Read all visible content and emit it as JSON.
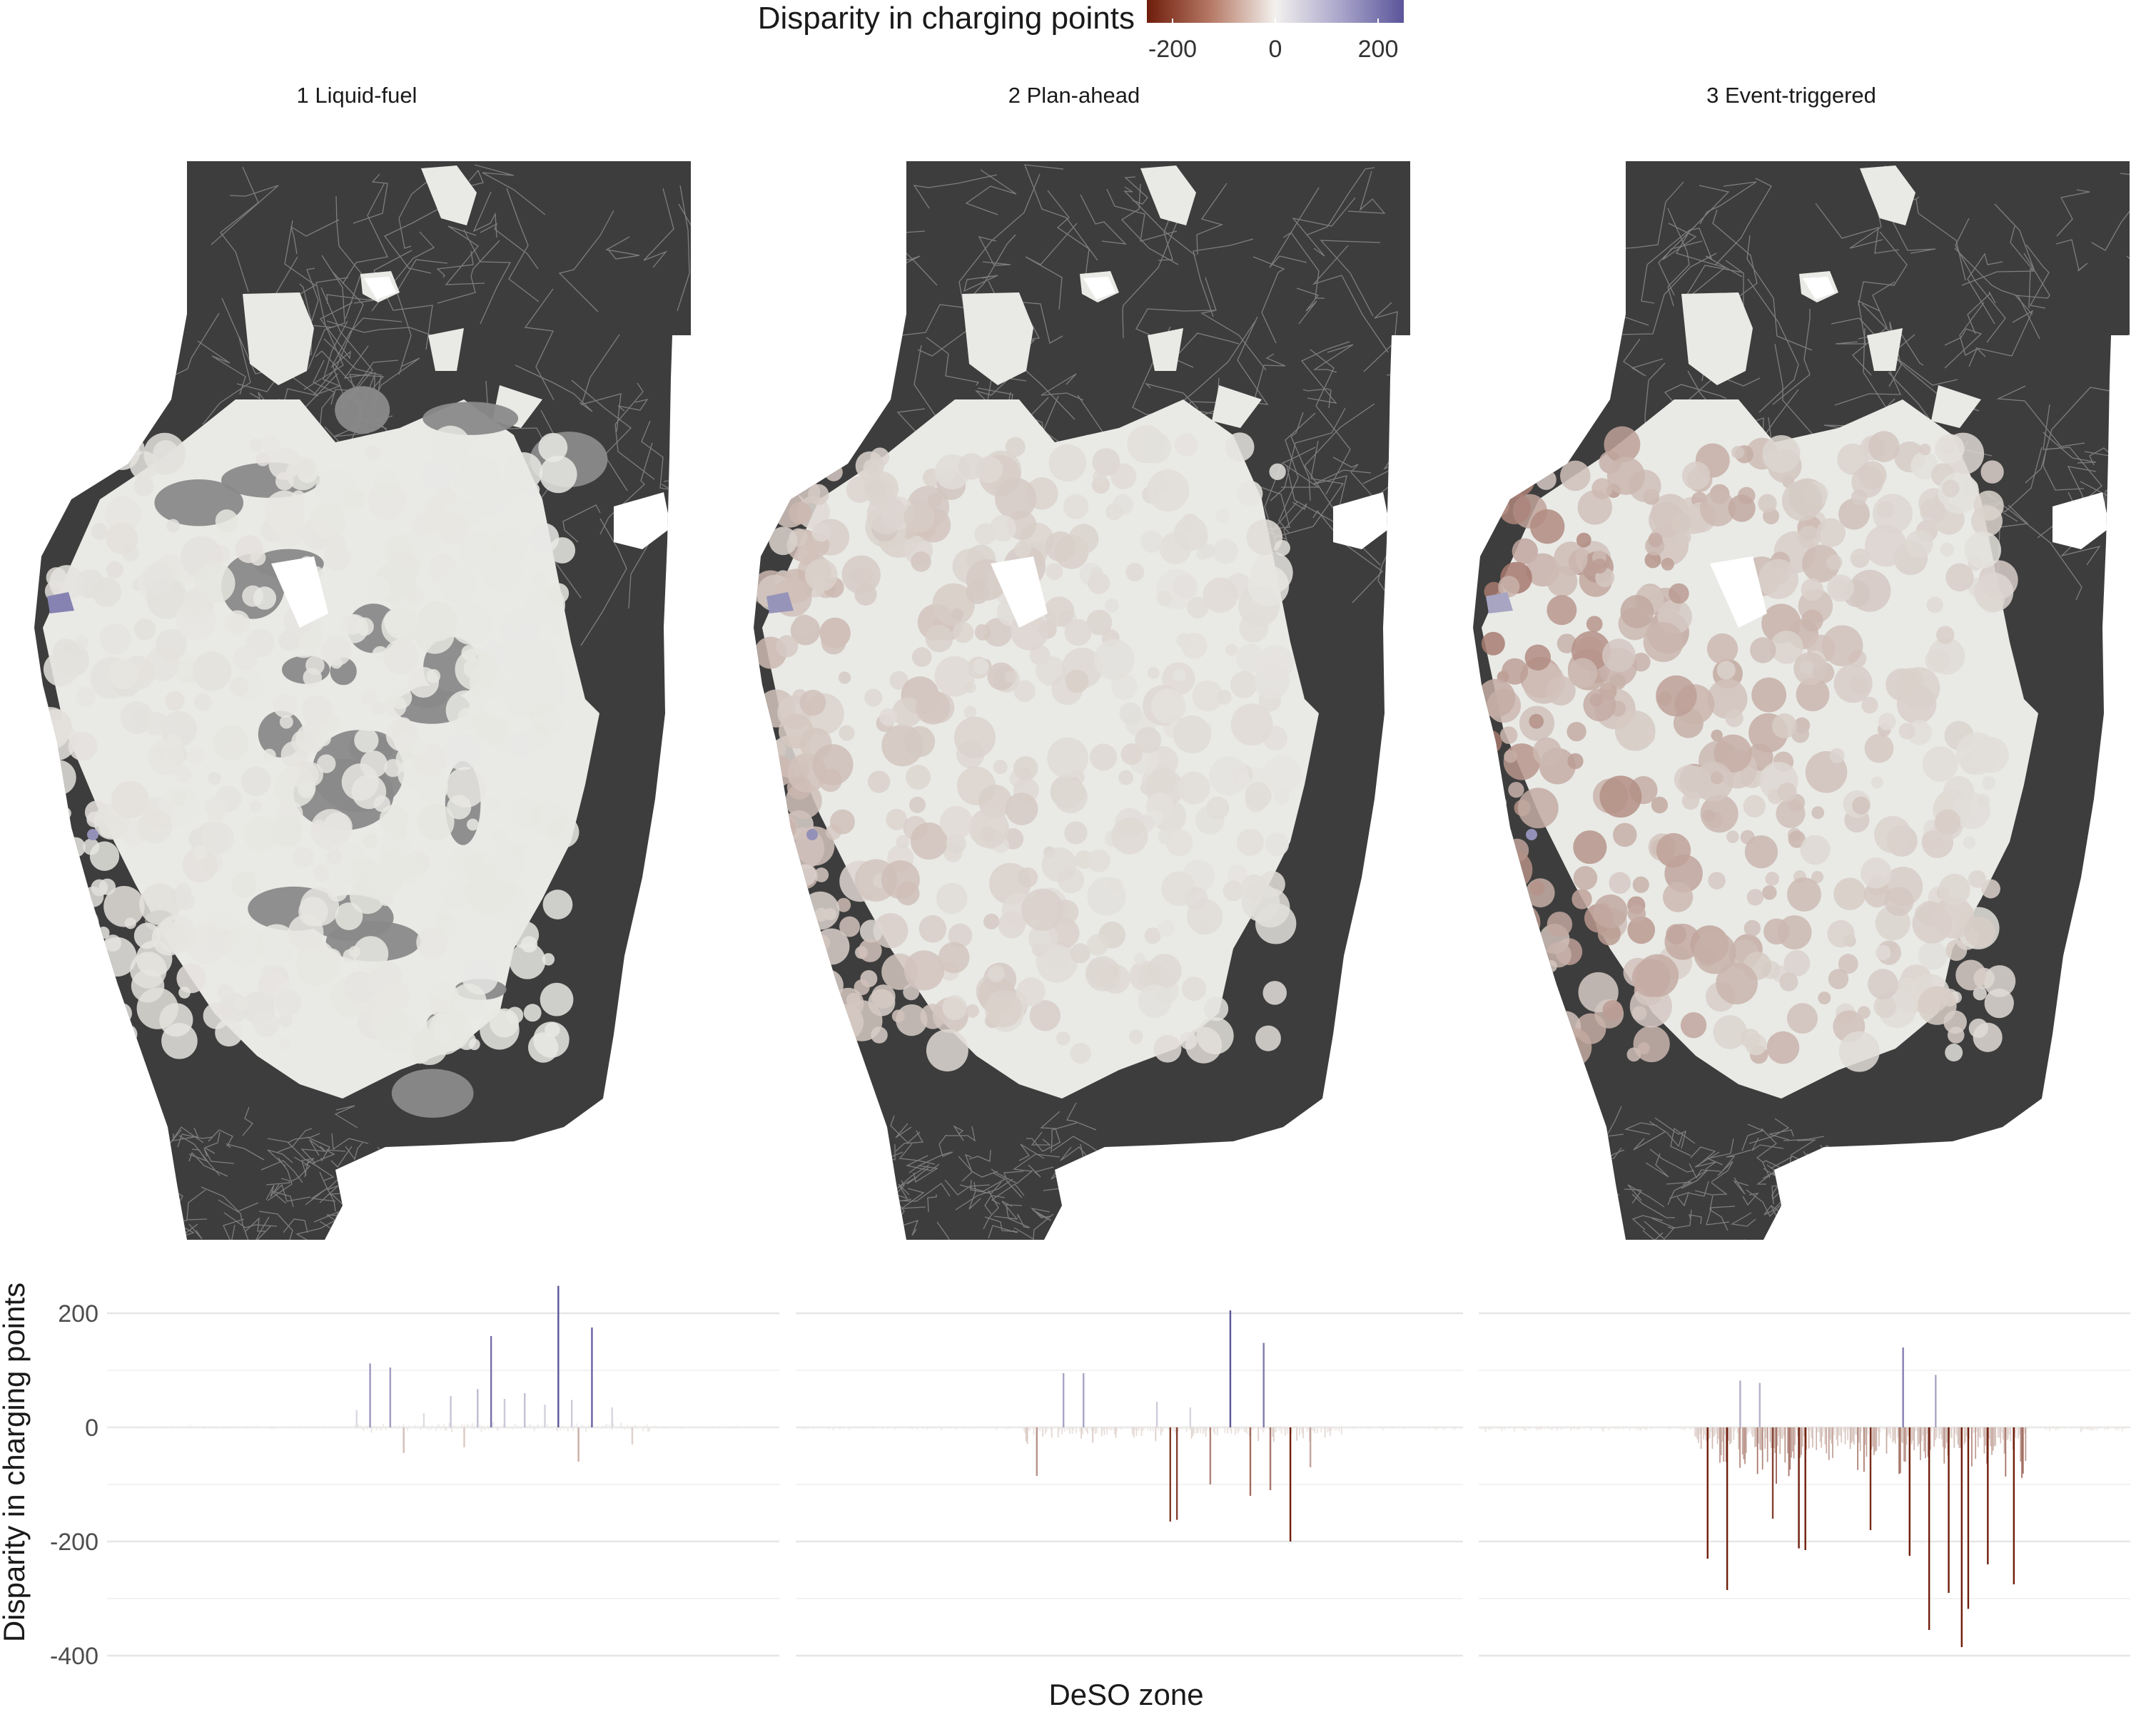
{
  "chart_data": {
    "type": "bar",
    "description_x_axis": "DeSO zone",
    "legend": {
      "title": "Disparity in charging points",
      "ticks": [
        -200,
        0,
        200
      ],
      "range": [
        -250,
        250
      ],
      "colors": {
        "negative": "#6f1d0b",
        "neutral": "#f3f1ee",
        "positive": "#5b559a"
      }
    },
    "missing_fill": "#3d3d3d",
    "map_colors": {
      "dark": "#3d3d3d",
      "gray": "#8a8a8a",
      "light": "#e9eae6",
      "border": "#ffffff"
    },
    "panels": [
      {
        "title": "1 Liquid-fuel",
        "map_tint": {
          "red": 0.05,
          "blue": 0.04
        },
        "gray_fraction": 0.36,
        "spikes": [
          {
            "pos": 0.39,
            "value": 112
          },
          {
            "pos": 0.42,
            "value": 105
          },
          {
            "pos": 0.37,
            "value": 30
          },
          {
            "pos": 0.47,
            "value": 25
          },
          {
            "pos": 0.51,
            "value": 55
          },
          {
            "pos": 0.55,
            "value": 67
          },
          {
            "pos": 0.57,
            "value": 160
          },
          {
            "pos": 0.59,
            "value": 50
          },
          {
            "pos": 0.62,
            "value": 60
          },
          {
            "pos": 0.65,
            "value": 40
          },
          {
            "pos": 0.67,
            "value": 248
          },
          {
            "pos": 0.69,
            "value": 48
          },
          {
            "pos": 0.72,
            "value": 175
          },
          {
            "pos": 0.75,
            "value": 35
          },
          {
            "pos": 0.44,
            "value": -45
          },
          {
            "pos": 0.53,
            "value": -35
          },
          {
            "pos": 0.7,
            "value": -60
          },
          {
            "pos": 0.78,
            "value": -30
          }
        ],
        "noise": {
          "amplitude": 14,
          "active": [
            0.37,
            0.82
          ],
          "bias": 0.0
        }
      },
      {
        "title": "2 Plan-ahead",
        "map_tint": {
          "red": 0.22,
          "blue": 0.03
        },
        "gray_fraction": 0.0,
        "spikes": [
          {
            "pos": 0.4,
            "value": 95
          },
          {
            "pos": 0.43,
            "value": 95
          },
          {
            "pos": 0.65,
            "value": 205
          },
          {
            "pos": 0.7,
            "value": 148
          },
          {
            "pos": 0.59,
            "value": 35
          },
          {
            "pos": 0.54,
            "value": 45
          },
          {
            "pos": 0.56,
            "value": -165
          },
          {
            "pos": 0.57,
            "value": -162
          },
          {
            "pos": 0.74,
            "value": -200
          },
          {
            "pos": 0.36,
            "value": -85
          },
          {
            "pos": 0.68,
            "value": -120
          },
          {
            "pos": 0.62,
            "value": -100
          },
          {
            "pos": 0.71,
            "value": -110
          },
          {
            "pos": 0.77,
            "value": -70
          }
        ],
        "noise": {
          "amplitude": 22,
          "active": [
            0.34,
            0.82
          ],
          "bias": -0.55
        }
      },
      {
        "title": "3 Event-triggered",
        "map_tint": {
          "red": 0.45,
          "blue": 0.03
        },
        "gray_fraction": 0.0,
        "spikes": [
          {
            "pos": 0.4,
            "value": 82
          },
          {
            "pos": 0.43,
            "value": 78
          },
          {
            "pos": 0.65,
            "value": 140
          },
          {
            "pos": 0.7,
            "value": 92
          },
          {
            "pos": 0.38,
            "value": -285
          },
          {
            "pos": 0.35,
            "value": -230
          },
          {
            "pos": 0.49,
            "value": -212
          },
          {
            "pos": 0.5,
            "value": -215
          },
          {
            "pos": 0.69,
            "value": -355
          },
          {
            "pos": 0.72,
            "value": -290
          },
          {
            "pos": 0.74,
            "value": -385
          },
          {
            "pos": 0.75,
            "value": -318
          },
          {
            "pos": 0.82,
            "value": -275
          },
          {
            "pos": 0.66,
            "value": -225
          },
          {
            "pos": 0.78,
            "value": -240
          },
          {
            "pos": 0.6,
            "value": -180
          },
          {
            "pos": 0.45,
            "value": -160
          }
        ],
        "noise": {
          "amplitude": 60,
          "active": [
            0.33,
            0.84
          ],
          "bias": -1.0
        }
      }
    ],
    "y_axis": {
      "label": "Disparity in charging points",
      "ticks": [
        200,
        0,
        -200,
        -400
      ],
      "ylim": [
        -420,
        270
      ]
    },
    "xlabel": "DeSO zone"
  }
}
